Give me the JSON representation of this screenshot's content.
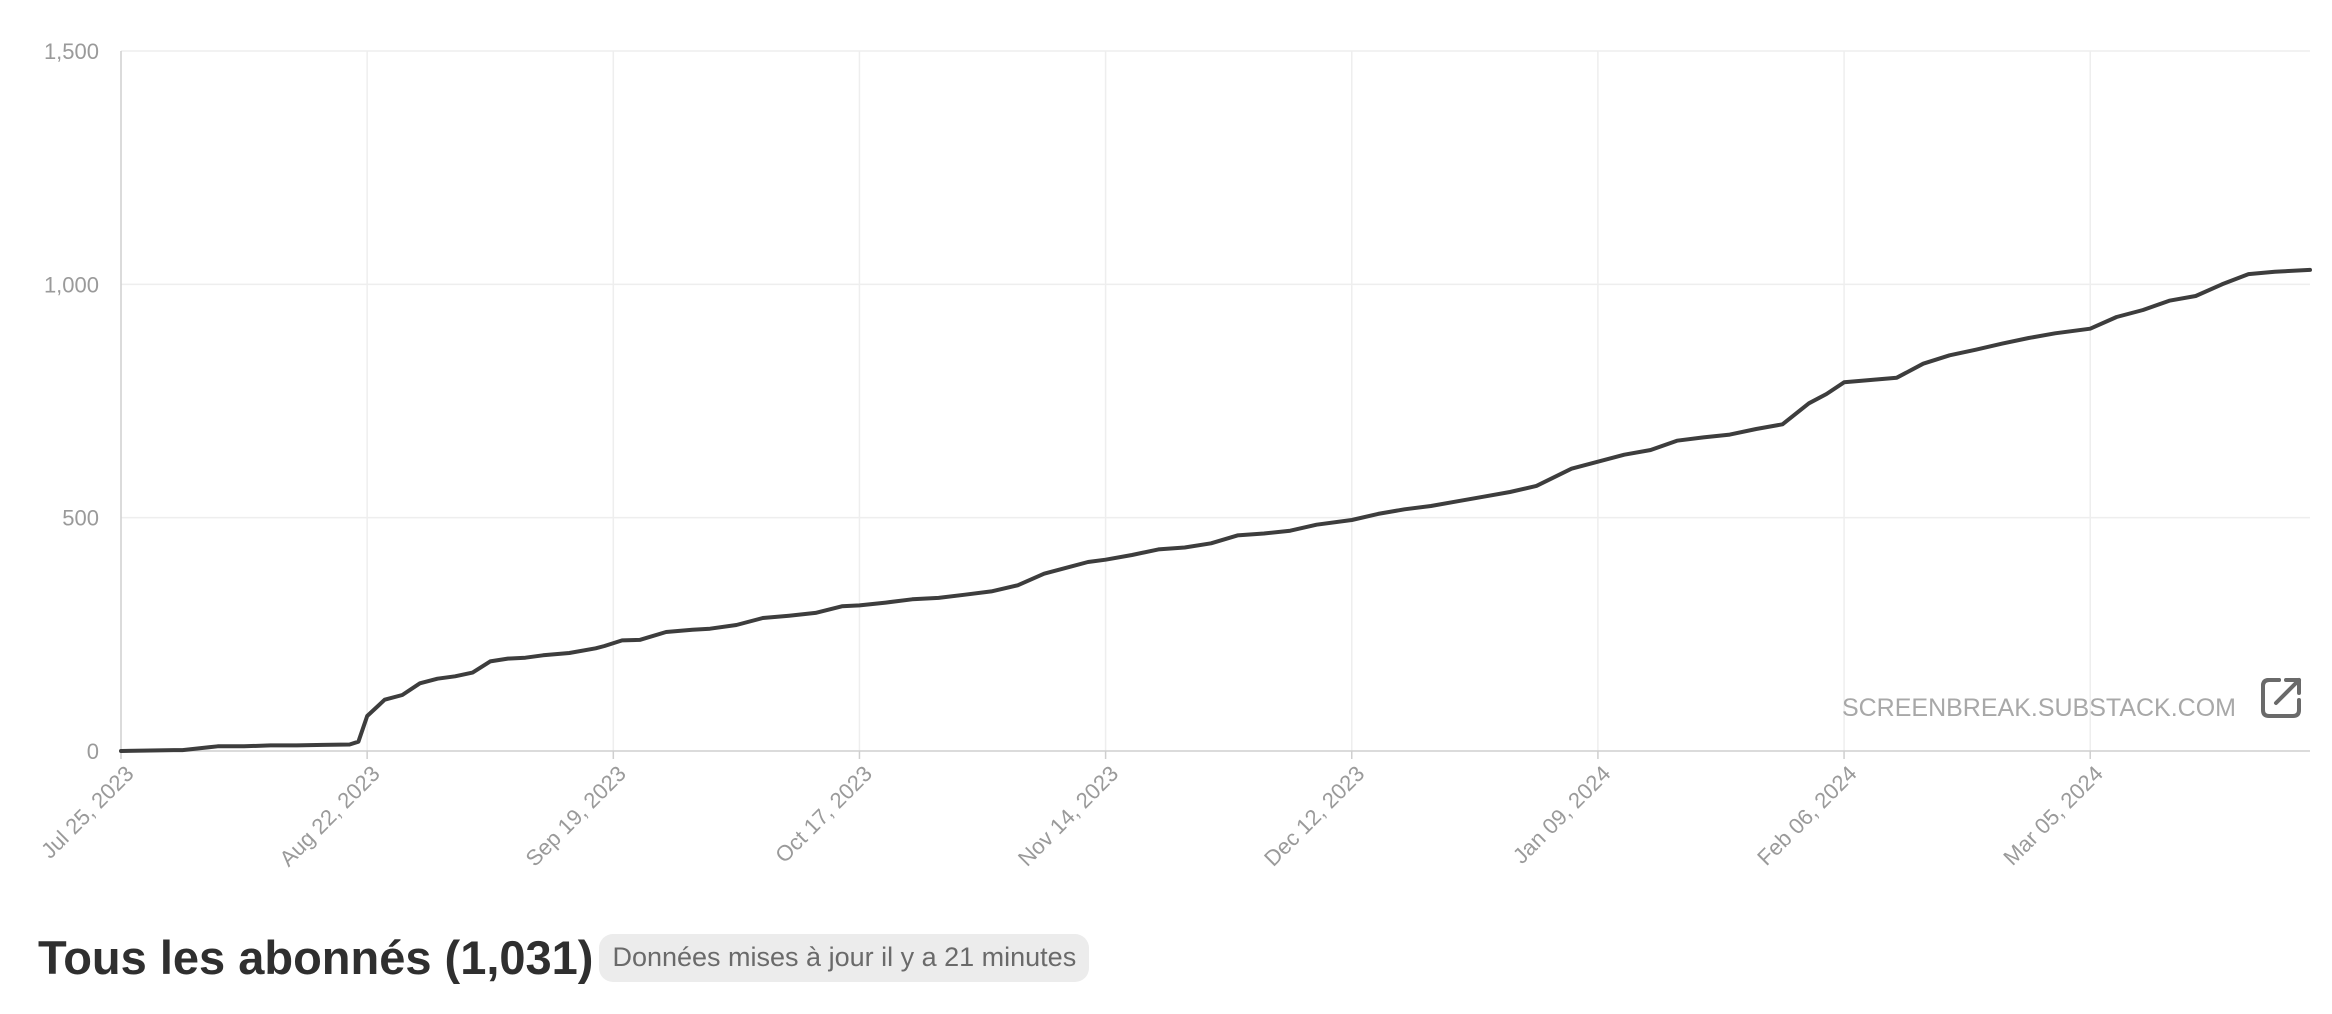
{
  "chart_data": {
    "type": "line",
    "title": "",
    "xlabel": "",
    "ylabel": "",
    "ylim": [
      0,
      1500
    ],
    "xlim": [
      "2023-07-25",
      "2024-03-30"
    ],
    "yticks": [
      0,
      500,
      1000,
      1500
    ],
    "ytick_labels": [
      "0",
      "500",
      "1,000",
      "1,500"
    ],
    "xticks": [
      "2023-07-25",
      "2023-08-22",
      "2023-09-19",
      "2023-10-17",
      "2023-11-14",
      "2023-12-12",
      "2024-01-09",
      "2024-02-06",
      "2024-03-05"
    ],
    "xtick_labels": [
      "Jul 25, 2023",
      "Aug 22, 2023",
      "Sep 19, 2023",
      "Oct 17, 2023",
      "Nov 14, 2023",
      "Dec 12, 2023",
      "Jan 09, 2024",
      "Feb 06, 2024",
      "Mar 05, 2024"
    ],
    "grid": true,
    "legend": "none",
    "line_color": "#3d3d3d",
    "series": [
      {
        "x": [
          "2023-07-25",
          "2023-07-31",
          "2023-08-01",
          "2023-08-04",
          "2023-08-05",
          "2023-08-08",
          "2023-08-11",
          "2023-08-14",
          "2023-08-17",
          "2023-08-20",
          "2023-08-21",
          "2023-08-22",
          "2023-08-24",
          "2023-08-26",
          "2023-08-28",
          "2023-08-30",
          "2023-09-01",
          "2023-09-03",
          "2023-09-05",
          "2023-09-07",
          "2023-09-09",
          "2023-09-11",
          "2023-09-14",
          "2023-09-17",
          "2023-09-18",
          "2023-09-20",
          "2023-09-22",
          "2023-09-25",
          "2023-09-28",
          "2023-09-30",
          "2023-10-03",
          "2023-10-06",
          "2023-10-09",
          "2023-10-12",
          "2023-10-15",
          "2023-10-17",
          "2023-10-20",
          "2023-10-23",
          "2023-10-26",
          "2023-10-29",
          "2023-11-01",
          "2023-11-04",
          "2023-11-07",
          "2023-11-10",
          "2023-11-12",
          "2023-11-14",
          "2023-11-17",
          "2023-11-20",
          "2023-11-23",
          "2023-11-26",
          "2023-11-29",
          "2023-12-02",
          "2023-12-05",
          "2023-12-08",
          "2023-12-12",
          "2023-12-15",
          "2023-12-18",
          "2023-12-21",
          "2023-12-24",
          "2023-12-27",
          "2023-12-30",
          "2024-01-02",
          "2024-01-06",
          "2024-01-09",
          "2024-01-12",
          "2024-01-15",
          "2024-01-18",
          "2024-01-21",
          "2024-01-24",
          "2024-01-27",
          "2024-01-30",
          "2024-02-02",
          "2024-02-04",
          "2024-02-06",
          "2024-02-09",
          "2024-02-12",
          "2024-02-15",
          "2024-02-18",
          "2024-02-21",
          "2024-02-24",
          "2024-02-27",
          "2024-03-01",
          "2024-03-05",
          "2024-03-08",
          "2024-03-11",
          "2024-03-14",
          "2024-03-17",
          "2024-03-20",
          "2024-03-23",
          "2024-03-26",
          "2024-03-30"
        ],
        "y": [
          0,
          2,
          2,
          8,
          10,
          10,
          12,
          12,
          13,
          14,
          20,
          75,
          110,
          120,
          145,
          155,
          160,
          168,
          192,
          198,
          200,
          205,
          210,
          220,
          225,
          237,
          238,
          255,
          260,
          262,
          270,
          285,
          290,
          296,
          310,
          312,
          318,
          325,
          328,
          335,
          342,
          355,
          380,
          395,
          405,
          410,
          420,
          432,
          436,
          445,
          462,
          466,
          472,
          485,
          495,
          508,
          518,
          525,
          535,
          545,
          555,
          568,
          605,
          620,
          635,
          645,
          665,
          672,
          678,
          690,
          700,
          745,
          765,
          790,
          795,
          800,
          830,
          848,
          860,
          873,
          885,
          895,
          905,
          930,
          945,
          965,
          975,
          1000,
          1022,
          1027,
          1031
        ]
      }
    ]
  },
  "watermark": {
    "text": "SCREENBREAK.SUBSTACK.COM",
    "icon": "external-link-icon"
  },
  "footer": {
    "title": "Tous les abonnés (1,031)",
    "badge": "Données mises à jour il y a 21 minutes"
  }
}
